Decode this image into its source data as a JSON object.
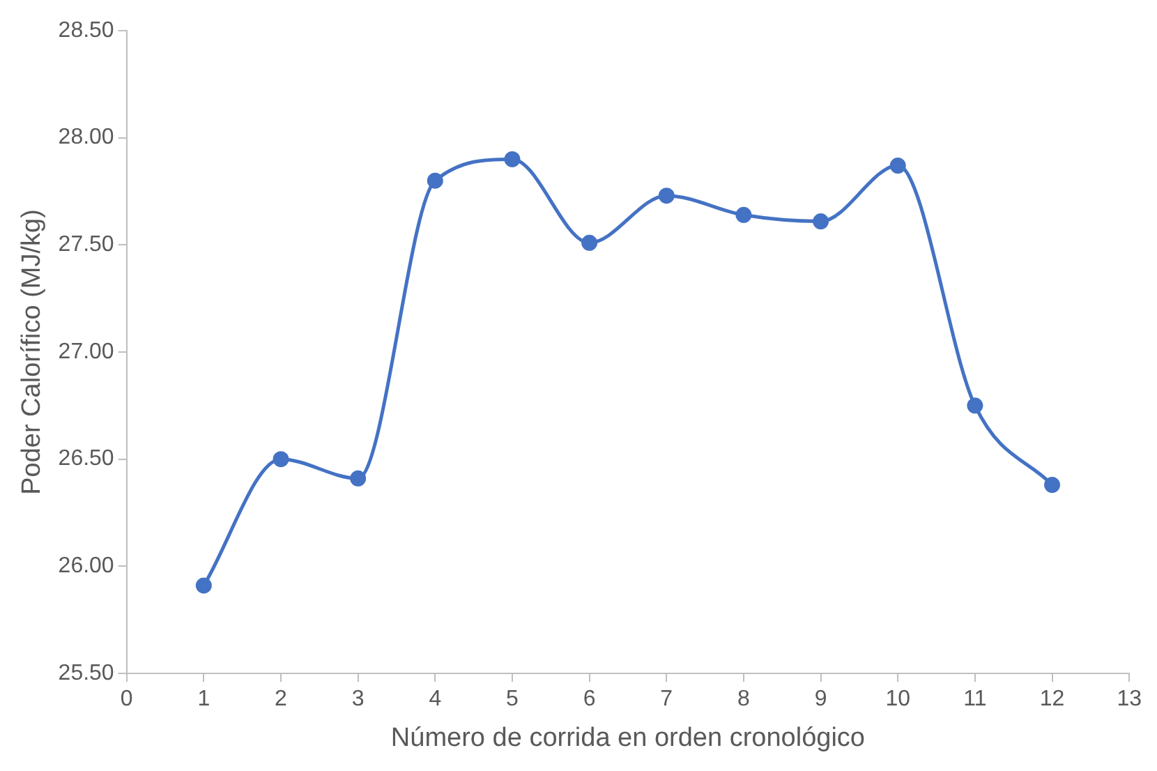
{
  "chart_data": {
    "type": "line",
    "xlabel": "Número de corrida en orden cronológico",
    "ylabel": "Poder Calorífico (MJ/kg)",
    "x": [
      1,
      2,
      3,
      4,
      5,
      6,
      7,
      8,
      9,
      10,
      11,
      12
    ],
    "series": [
      {
        "color": "#4472c4",
        "values": [
          25.91,
          26.5,
          26.41,
          27.8,
          27.9,
          27.51,
          27.73,
          27.64,
          27.61,
          27.87,
          26.75,
          26.38
        ]
      }
    ],
    "xlim": [
      0,
      13
    ],
    "xticks": [
      0,
      1,
      2,
      3,
      4,
      5,
      6,
      7,
      8,
      9,
      10,
      11,
      12,
      13
    ],
    "ylim": [
      25.5,
      28.5
    ],
    "yticks": [
      {
        "value": 25.5,
        "label": "25.50"
      },
      {
        "value": 26,
        "label": "26.00"
      },
      {
        "value": 26.5,
        "label": "26.50"
      },
      {
        "value": 27,
        "label": "27.00"
      },
      {
        "value": 27.5,
        "label": "27.50"
      },
      {
        "value": 28,
        "label": "28.00"
      },
      {
        "value": 28.5,
        "label": "28.50"
      }
    ],
    "marker": "circle",
    "line_style": "solid",
    "grid": false,
    "legend": false
  }
}
